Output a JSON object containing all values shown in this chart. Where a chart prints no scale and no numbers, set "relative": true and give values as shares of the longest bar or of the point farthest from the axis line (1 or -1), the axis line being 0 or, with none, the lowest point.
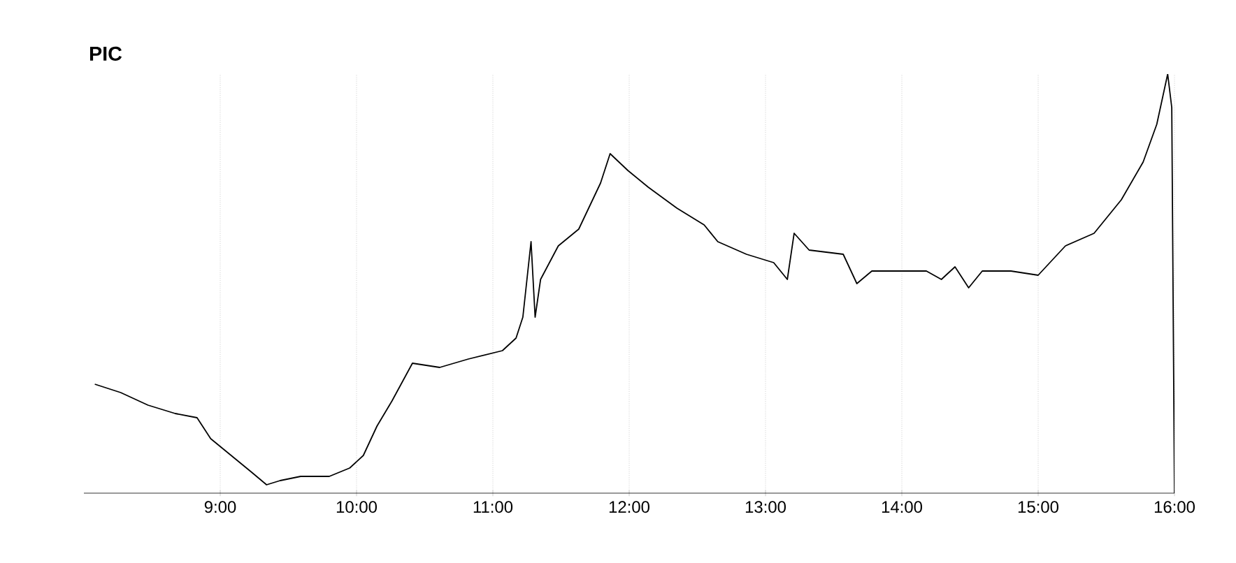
{
  "chart_data": {
    "type": "line",
    "title": "PIC",
    "relative": true,
    "grid": true,
    "xlim": [
      8,
      16
    ],
    "xticks": [
      {
        "value": 9,
        "label": "9:00"
      },
      {
        "value": 10,
        "label": "10:00"
      },
      {
        "value": 11,
        "label": "11:00"
      },
      {
        "value": 12,
        "label": "12:00"
      },
      {
        "value": 13,
        "label": "13:00"
      },
      {
        "value": 14,
        "label": "14:00"
      },
      {
        "value": 15,
        "label": "15:00"
      },
      {
        "value": 16,
        "label": "16:00"
      }
    ],
    "series": [
      {
        "color": "#000000",
        "x": [
          8.08,
          8.27,
          8.47,
          8.67,
          8.83,
          8.93,
          9.08,
          9.23,
          9.34,
          9.44,
          9.59,
          9.8,
          9.95,
          10.05,
          10.15,
          10.26,
          10.41,
          10.61,
          10.82,
          11.07,
          11.17,
          11.22,
          11.28,
          11.31,
          11.35,
          11.48,
          11.63,
          11.79,
          11.86,
          11.99,
          12.14,
          12.35,
          12.55,
          12.65,
          12.86,
          13.06,
          13.16,
          13.21,
          13.32,
          13.57,
          13.67,
          13.78,
          13.98,
          14.18,
          14.29,
          14.39,
          14.49,
          14.59,
          14.8,
          15.0,
          15.2,
          15.41,
          15.61,
          15.77,
          15.87,
          15.95,
          15.98,
          16.0
        ],
        "values": [
          0.26,
          0.24,
          0.21,
          0.19,
          0.18,
          0.13,
          0.09,
          0.05,
          0.02,
          0.03,
          0.04,
          0.04,
          0.06,
          0.09,
          0.16,
          0.22,
          0.31,
          0.3,
          0.32,
          0.34,
          0.37,
          0.42,
          0.6,
          0.42,
          0.51,
          0.59,
          0.63,
          0.74,
          0.81,
          0.77,
          0.73,
          0.68,
          0.64,
          0.6,
          0.57,
          0.55,
          0.51,
          0.62,
          0.58,
          0.57,
          0.5,
          0.53,
          0.53,
          0.53,
          0.51,
          0.54,
          0.49,
          0.53,
          0.53,
          0.52,
          0.59,
          0.62,
          0.7,
          0.79,
          0.88,
          1.0,
          0.92,
          0
        ]
      }
    ]
  }
}
